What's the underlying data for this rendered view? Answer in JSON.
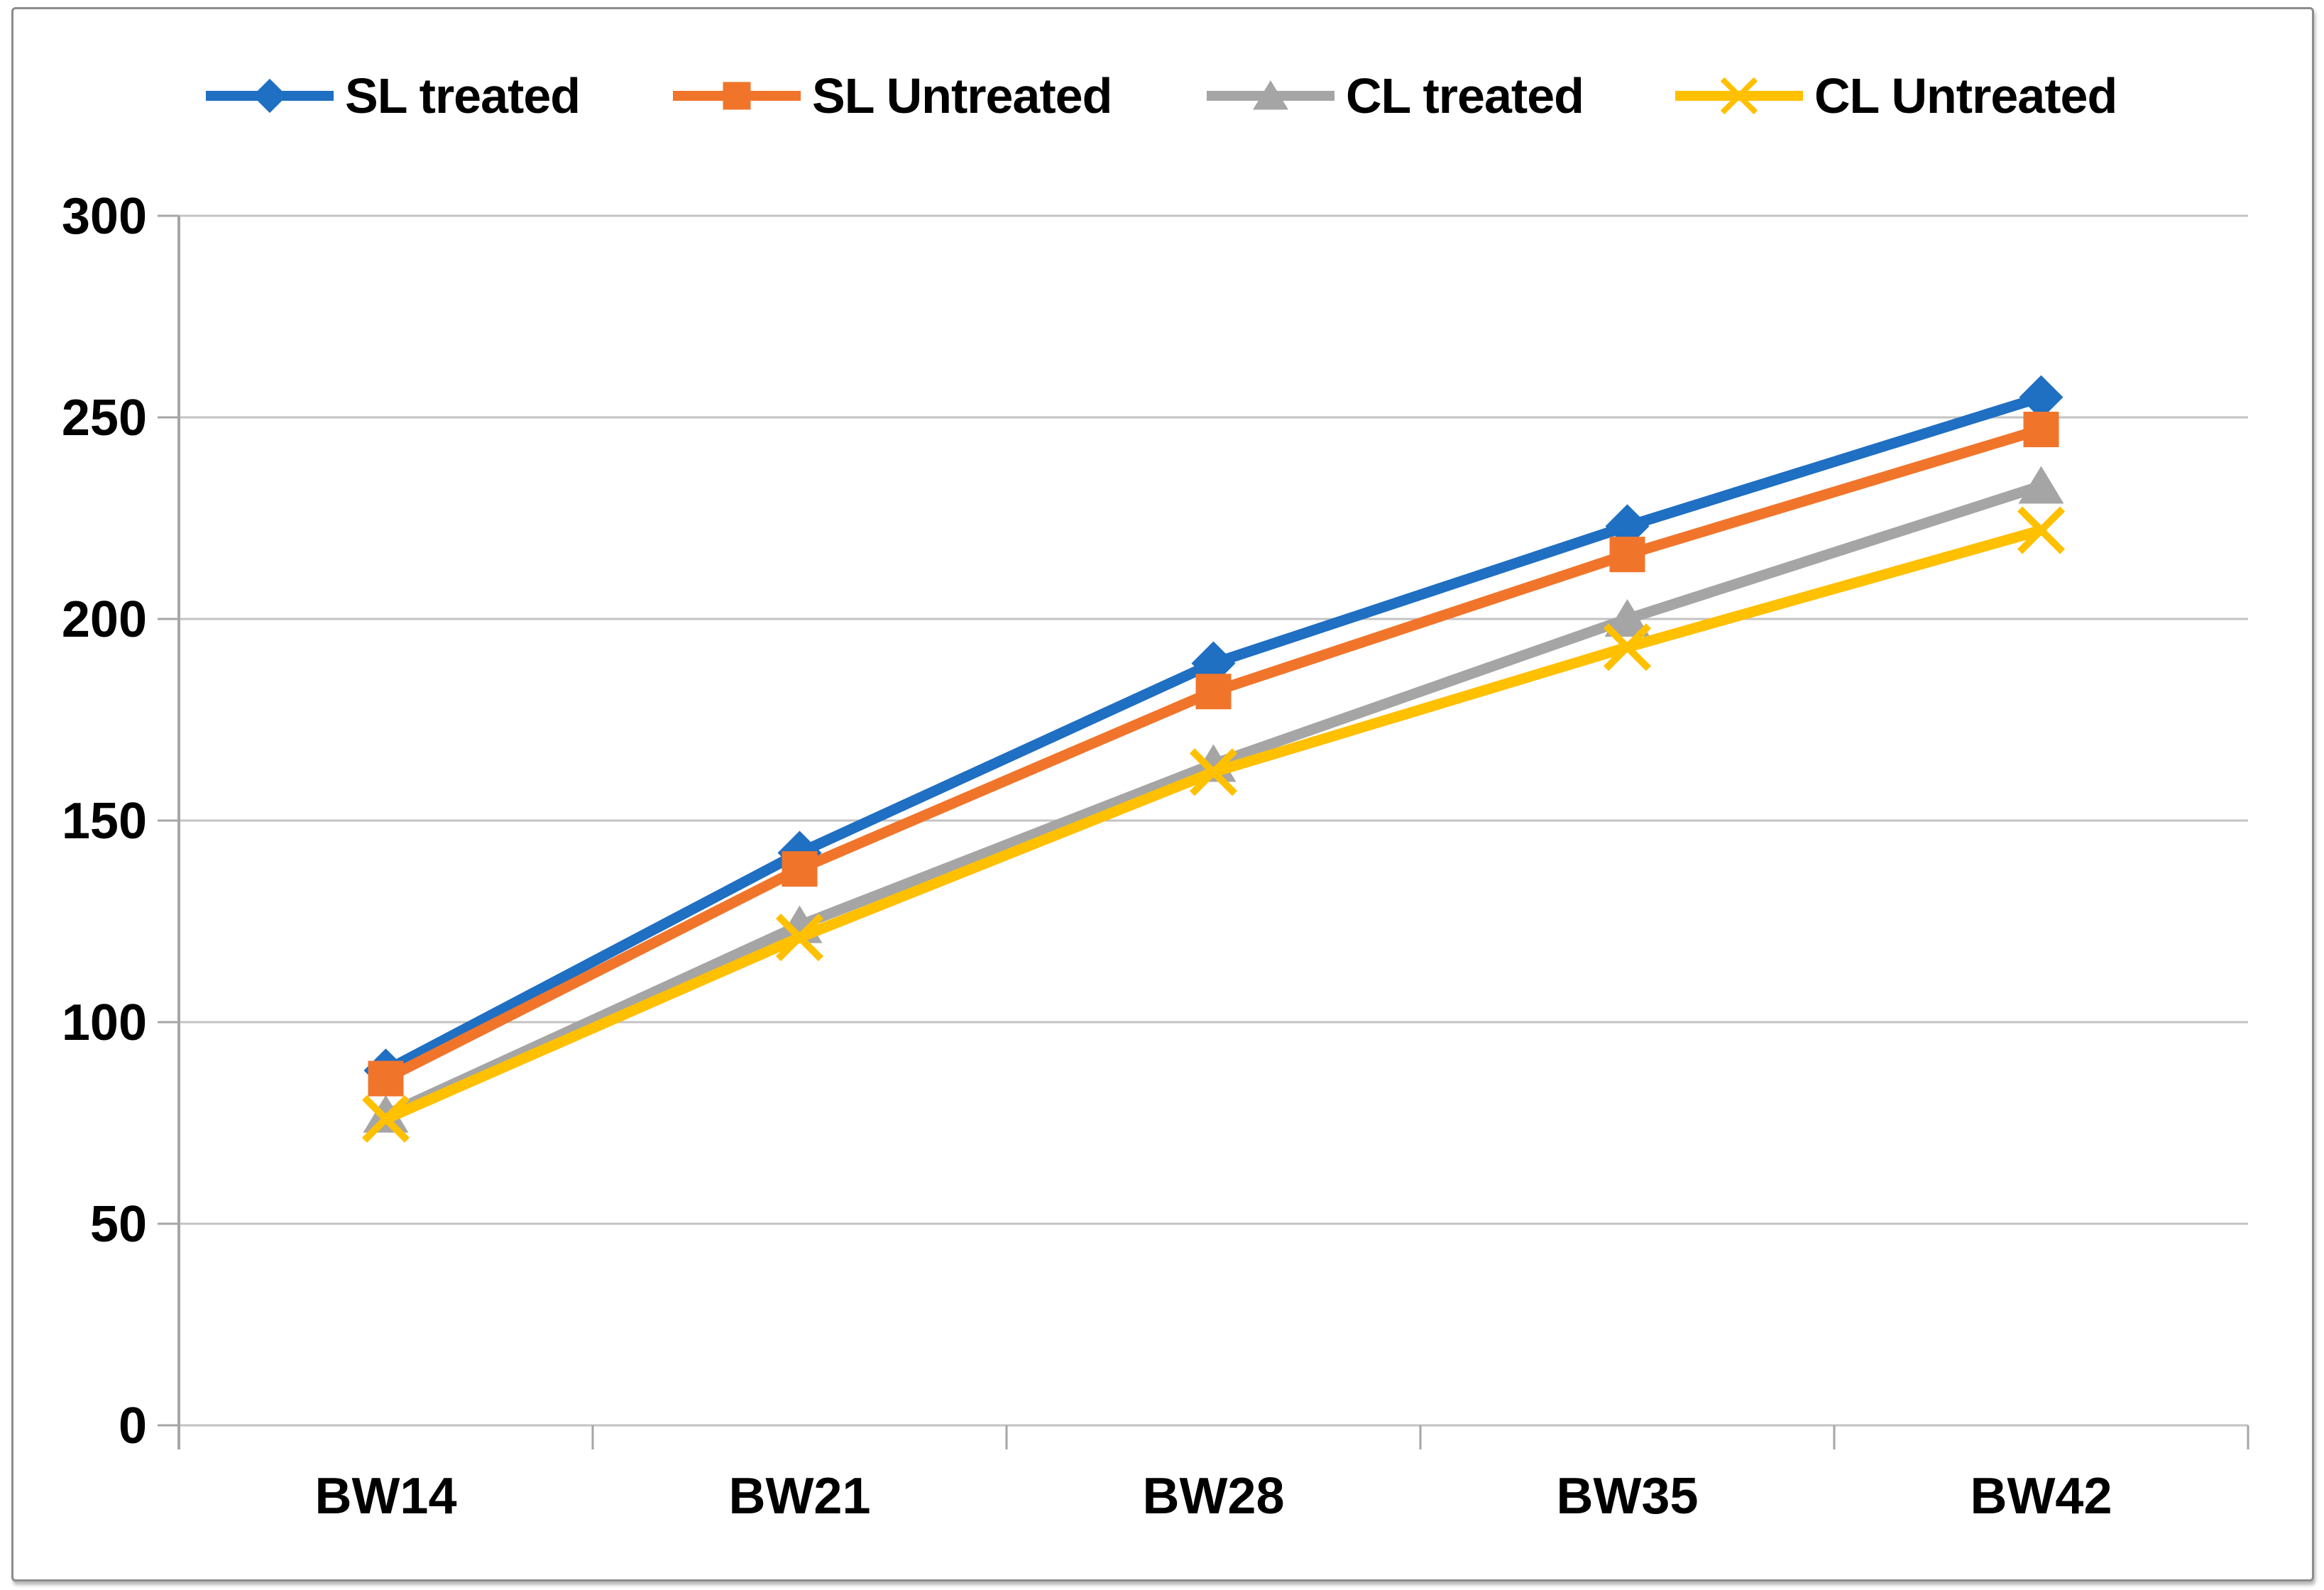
{
  "chart_data": {
    "type": "line",
    "title": "",
    "xlabel": "",
    "ylabel": "",
    "categories": [
      "BW14",
      "BW21",
      "BW28",
      "BW35",
      "BW42"
    ],
    "series": [
      {
        "name": "SL treated",
        "color": "#1F6FC2",
        "marker": "diamond",
        "values": [
          88,
          142,
          189,
          223,
          255
        ]
      },
      {
        "name": "SL Untreated",
        "color": "#F0752B",
        "marker": "square",
        "values": [
          86,
          138,
          182,
          216,
          247
        ]
      },
      {
        "name": "CL treated",
        "color": "#A5A5A5",
        "marker": "triangle",
        "values": [
          77,
          124,
          164,
          200,
          233
        ]
      },
      {
        "name": "CL Untreated",
        "color": "#FFC000",
        "marker": "x",
        "values": [
          76,
          121,
          162,
          193,
          222
        ]
      }
    ],
    "ylim": [
      0,
      300
    ],
    "yticks": [
      0,
      50,
      100,
      150,
      200,
      250,
      300
    ],
    "grid": true,
    "legend_position": "top",
    "colors": {
      "grid": "#C3C3C3",
      "axis": "#A6A6A6",
      "text": "#000000",
      "frame_border": "#8C8C8C",
      "background": "#FFFFFF"
    }
  }
}
